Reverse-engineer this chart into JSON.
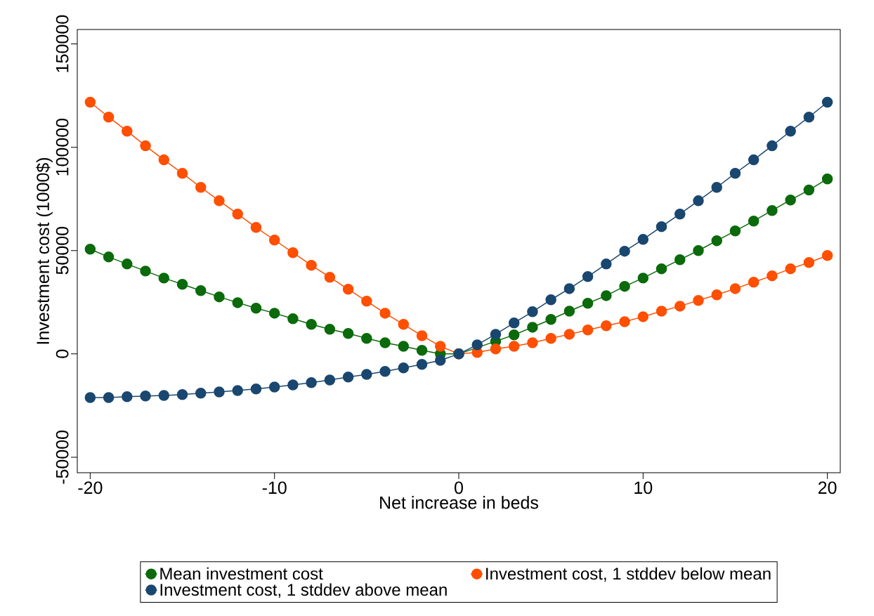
{
  "chart_data": {
    "type": "line",
    "xlabel": "Net increase in beds",
    "ylabel": "Investment cost (1000$)",
    "x": [
      -20,
      -19,
      -18,
      -17,
      -16,
      -15,
      -14,
      -13,
      -12,
      -11,
      -10,
      -9,
      -8,
      -7,
      -6,
      -5,
      -4,
      -3,
      -2,
      -1,
      0,
      1,
      2,
      3,
      4,
      5,
      6,
      7,
      8,
      9,
      10,
      11,
      12,
      13,
      14,
      15,
      16,
      17,
      18,
      19,
      20
    ],
    "series": [
      {
        "name": "Mean investment cost",
        "color": "#0b6a0b",
        "values": [
          50700,
          46900,
          43500,
          40100,
          36700,
          33700,
          30600,
          27600,
          24800,
          22100,
          19700,
          17000,
          14300,
          11900,
          9900,
          7500,
          5400,
          3700,
          1700,
          0,
          0,
          null,
          6100,
          9200,
          12900,
          16700,
          20700,
          24500,
          28200,
          32700,
          36700,
          41200,
          45600,
          50000,
          54800,
          59500,
          64300,
          69400,
          74500,
          79300,
          84700
        ]
      },
      {
        "name": "Investment cost, 1 stddev below mean",
        "color": "#ff4f00",
        "values": [
          121800,
          114600,
          107800,
          100700,
          93900,
          87400,
          80600,
          74100,
          67700,
          61200,
          55100,
          49000,
          42900,
          37100,
          31300,
          25500,
          19700,
          14300,
          8800,
          3700,
          0,
          700,
          2400,
          3700,
          5400,
          7500,
          9500,
          11600,
          13600,
          15600,
          18000,
          20700,
          23100,
          25900,
          28600,
          31600,
          34700,
          37800,
          41200,
          44200,
          47600
        ]
      },
      {
        "name": "Investment cost, 1 stddev above mean",
        "color": "#1a476f",
        "values": [
          -21100,
          -21100,
          -20700,
          -20400,
          -20100,
          -19700,
          -19000,
          -18400,
          -17700,
          -17000,
          -16000,
          -15000,
          -13900,
          -12600,
          -11200,
          -9900,
          -8500,
          -6800,
          -5100,
          -3100,
          0,
          4400,
          9500,
          15000,
          20400,
          26200,
          31600,
          37400,
          43500,
          49700,
          55400,
          61600,
          67700,
          74100,
          80600,
          87400,
          93900,
          100700,
          107800,
          114600,
          121800
        ]
      }
    ],
    "xlim": [
      -20.7,
      20.7
    ],
    "ylim": [
      -57500,
      157000
    ],
    "xticks": [
      -20,
      -10,
      0,
      10,
      20
    ],
    "yticks": [
      -50000,
      0,
      50000,
      100000,
      150000
    ],
    "marker": "circle",
    "line_style": "solid",
    "grid": false,
    "legend": "bottom"
  }
}
